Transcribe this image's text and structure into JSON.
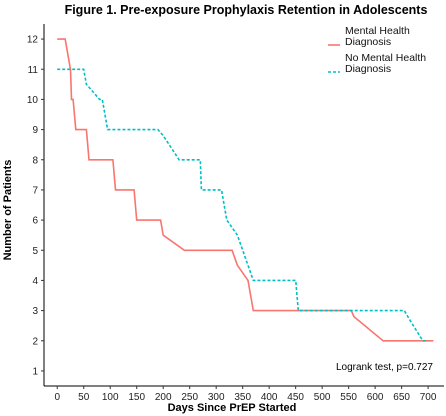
{
  "chart_data": {
    "type": "line",
    "title": "Figure 1. Pre-exposure Prophylaxis Retention in Adolescents",
    "xlabel": "Days Since PrEP Started",
    "ylabel": "Number of Patients",
    "xlim": [
      -25,
      730
    ],
    "ylim": [
      0.5,
      12.5
    ],
    "xticks": [
      0,
      50,
      100,
      150,
      200,
      250,
      300,
      350,
      400,
      450,
      500,
      550,
      600,
      650,
      700
    ],
    "yticks": [
      1,
      2,
      3,
      4,
      5,
      6,
      7,
      8,
      9,
      10,
      11,
      12
    ],
    "grid": false,
    "legend_position": "top-right",
    "annotation": "Logrank test, p=0.727",
    "series": [
      {
        "name": "Mental Health Diagnosis",
        "color": "#F8766D",
        "style": "solid",
        "step": "hv",
        "points": [
          [
            0,
            12
          ],
          [
            15,
            12
          ],
          [
            20,
            11.5
          ],
          [
            25,
            11
          ],
          [
            27,
            10
          ],
          [
            30,
            10
          ],
          [
            35,
            9
          ],
          [
            55,
            9
          ],
          [
            60,
            8
          ],
          [
            105,
            8
          ],
          [
            110,
            7
          ],
          [
            145,
            7
          ],
          [
            150,
            6
          ],
          [
            195,
            6
          ],
          [
            200,
            5.5
          ],
          [
            240,
            5
          ],
          [
            330,
            5
          ],
          [
            340,
            4.5
          ],
          [
            360,
            4
          ],
          [
            370,
            3
          ],
          [
            555,
            3
          ],
          [
            560,
            2.8
          ],
          [
            615,
            2
          ],
          [
            710,
            2
          ]
        ]
      },
      {
        "name": "No Mental Health Diagnosis",
        "color": "#00BFC4",
        "style": "dashed",
        "step": "hv",
        "points": [
          [
            0,
            11
          ],
          [
            50,
            11
          ],
          [
            55,
            10.5
          ],
          [
            80,
            10
          ],
          [
            85,
            10
          ],
          [
            95,
            9
          ],
          [
            190,
            9
          ],
          [
            200,
            8.8
          ],
          [
            230,
            8
          ],
          [
            270,
            8
          ],
          [
            272,
            7
          ],
          [
            310,
            7
          ],
          [
            320,
            6
          ],
          [
            340,
            5.5
          ],
          [
            370,
            4
          ],
          [
            450,
            4
          ],
          [
            455,
            3
          ],
          [
            655,
            3
          ],
          [
            665,
            2.7
          ],
          [
            690,
            2
          ],
          [
            700,
            2
          ]
        ]
      }
    ]
  }
}
